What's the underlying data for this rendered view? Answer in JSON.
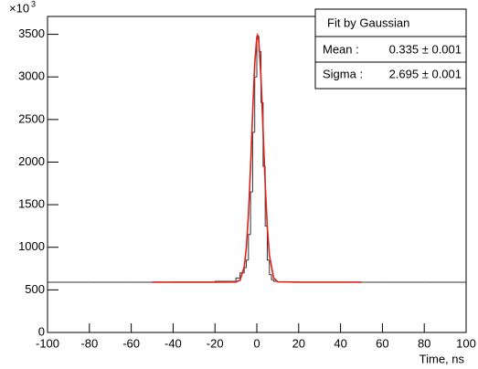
{
  "chart_data": {
    "type": "histogram",
    "y_multiplier": "×10",
    "y_multiplier_exponent": "3",
    "x_label": "Time, ns",
    "bins": [
      -100,
      -80,
      -60,
      -40,
      -20,
      -10,
      -8,
      -6,
      -5,
      -4,
      -3,
      -2,
      -1,
      0,
      1,
      2,
      3,
      4,
      5,
      6,
      7,
      8,
      10,
      20,
      40,
      60,
      80,
      100
    ],
    "counts": [
      590,
      590,
      590,
      592,
      600,
      640,
      700,
      760,
      850,
      1150,
      1650,
      2350,
      3000,
      3480,
      3300,
      2700,
      1950,
      1250,
      850,
      680,
      620,
      600,
      592,
      590,
      590,
      590,
      590
    ],
    "color": "#333333",
    "fit": {
      "color": "#e0201b",
      "x": [
        -50,
        -20,
        -10,
        -8,
        -6,
        -5,
        -4,
        -3,
        -2,
        -1,
        0,
        0.335,
        1,
        2,
        3,
        4,
        5,
        6,
        8,
        10,
        20,
        50
      ],
      "y": [
        590,
        590,
        592,
        614,
        773,
        999,
        1385,
        1939,
        2583,
        3154,
        3467,
        3490,
        3403,
        2986,
        2368,
        1741,
        1239,
        909,
        641,
        595,
        590,
        590
      ]
    },
    "xlim": [
      -100,
      100
    ],
    "ylim": [
      0,
      3710
    ],
    "xticks": [
      -100,
      -80,
      -60,
      -40,
      -20,
      0,
      20,
      40,
      60,
      80,
      100
    ],
    "yticks": [
      0,
      500,
      1000,
      1500,
      2000,
      2500,
      3000,
      3500
    ],
    "stats": {
      "title": "Fit by Gaussian",
      "rows": [
        {
          "label": "Mean :",
          "value": "0.335 ± 0.001"
        },
        {
          "label": "Sigma :",
          "value": "2.695 ± 0.001"
        }
      ]
    }
  }
}
